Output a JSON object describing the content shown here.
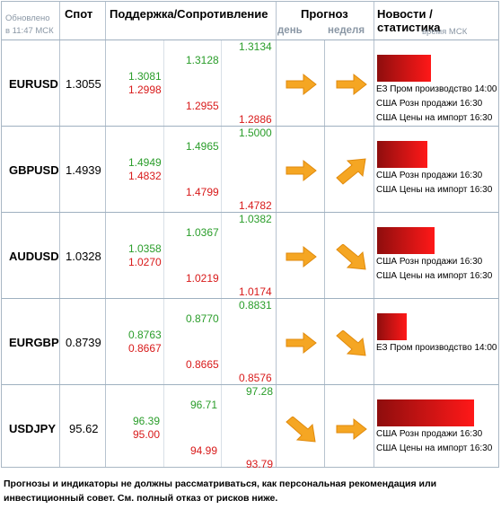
{
  "header": {
    "updated_label": "Обновлено",
    "updated_time": "в 11:47 МСК",
    "spot": "Спот",
    "support_resistance": "Поддержка/Сопротивление",
    "forecast": "Прогноз",
    "forecast_day": "день",
    "forecast_week": "неделя",
    "news": "Новости / статистика",
    "news_time": "время МСК"
  },
  "rows": [
    {
      "pair": "EURUSD",
      "spot": "1.3055",
      "s1": "1.3081",
      "r1": "1.2998",
      "s2": "1.3128",
      "r2": "1.2955",
      "s3": "1.3134",
      "r3": "1.2886",
      "day": "right",
      "week": "right",
      "news": [
        "ЕЗ Пром производство 14:00",
        "США Розн продажи 16:30",
        "США Цены на импорт 16:30"
      ]
    },
    {
      "pair": "GBPUSD",
      "spot": "1.4939",
      "s1": "1.4949",
      "r1": "1.4832",
      "s2": "1.4965",
      "r2": "1.4799",
      "s3": "1.5000",
      "r3": "1.4782",
      "day": "right",
      "week": "up-right",
      "news": [
        "США Розн продажи 16:30",
        "США Цены на импорт 16:30"
      ]
    },
    {
      "pair": "AUDUSD",
      "spot": "1.0328",
      "s1": "1.0358",
      "r1": "1.0270",
      "s2": "1.0367",
      "r2": "1.0219",
      "s3": "1.0382",
      "r3": "1.0174",
      "day": "right",
      "week": "down-right",
      "news": [
        "США Розн продажи 16:30",
        "США Цены на импорт 16:30"
      ]
    },
    {
      "pair": "EURGBP",
      "spot": "0.8739",
      "s1": "0.8763",
      "r1": "0.8667",
      "s2": "0.8770",
      "r2": "0.8665",
      "s3": "0.8831",
      "r3": "0.8576",
      "day": "right",
      "week": "down-right",
      "news": [
        "ЕЗ Пром производство 14:00"
      ]
    },
    {
      "pair": "USDJPY",
      "spot": "95.62",
      "s1": "96.39",
      "r1": "95.00",
      "s2": "96.71",
      "r2": "94.99",
      "s3": "97.28",
      "r3": "93.79",
      "day": "down-right",
      "week": "right",
      "news": [
        "США Розн продажи 16:30",
        "США Цены на импорт 16:30"
      ]
    }
  ],
  "disclaimer": "Прогнозы и индикаторы не должны рассматриваться, как персональная рекомендация или инвестиционный совет. См. полный отказ от рисков ниже.",
  "colors": {
    "support": "#2a9d2a",
    "resistance": "#d81a1a",
    "arrow": "#f5a623",
    "bar": "#d01010"
  }
}
